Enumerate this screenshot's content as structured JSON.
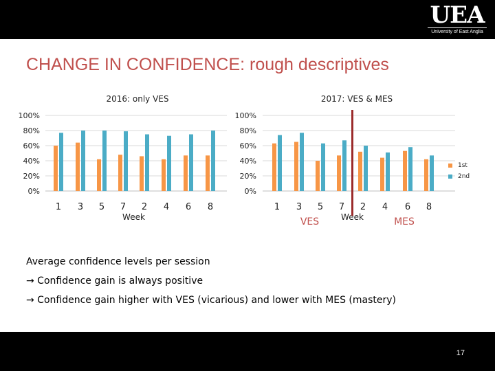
{
  "header": {
    "logo_text": "UEA",
    "logo_subtext": "University of East Anglia"
  },
  "slide": {
    "title": "CHANGE IN CONFIDENCE: rough descriptives",
    "page_number": "17"
  },
  "body": {
    "lines": [
      "Average confidence levels per session",
      "→ Confidence gain is always positive",
      "→ Confidence gain higher with VES (vicarious) and lower with MES (mastery)"
    ]
  },
  "legend": {
    "first": "1st",
    "second": "2nd",
    "colors": {
      "first": "#F79646",
      "second": "#4BACC6"
    }
  },
  "chart_data": [
    {
      "type": "bar",
      "title": "2016: only VES",
      "xlabel": "Week",
      "categories": [
        "1",
        "3",
        "5",
        "7",
        "2",
        "4",
        "6",
        "8"
      ],
      "ylim": [
        0,
        100
      ],
      "yticks": [
        "0%",
        "20%",
        "40%",
        "60%",
        "80%",
        "100%"
      ],
      "grid": true,
      "series": [
        {
          "name": "1st",
          "color": "#F79646",
          "values": [
            60,
            64,
            42,
            48,
            46,
            42,
            47,
            47
          ]
        },
        {
          "name": "2nd",
          "color": "#4BACC6",
          "values": [
            77,
            80,
            80,
            79,
            75,
            73,
            75,
            80
          ]
        }
      ]
    },
    {
      "type": "bar",
      "title": "2017: VES & MES",
      "xlabel": "Week",
      "categories": [
        "1",
        "3",
        "5",
        "7",
        "2",
        "4",
        "6",
        "8"
      ],
      "ylim": [
        0,
        100
      ],
      "yticks": [
        "0%",
        "20%",
        "40%",
        "60%",
        "80%",
        "100%"
      ],
      "grid": true,
      "annotations": [
        "VES",
        "MES"
      ],
      "divider_after_category": 4,
      "divider_color": "#9B2B2B",
      "series": [
        {
          "name": "1st",
          "color": "#F79646",
          "values": [
            63,
            65,
            40,
            47,
            52,
            44,
            53,
            42
          ]
        },
        {
          "name": "2nd",
          "color": "#4BACC6",
          "values": [
            74,
            77,
            63,
            67,
            60,
            51,
            58,
            47
          ]
        }
      ]
    }
  ]
}
